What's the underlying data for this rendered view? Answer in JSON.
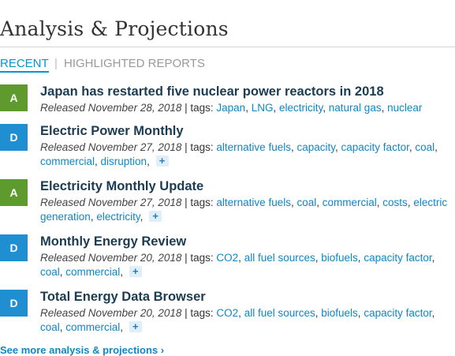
{
  "section": {
    "title": "Analysis & Projections"
  },
  "tabs": {
    "recent": "RECENT",
    "separator": "|",
    "highlighted": "HIGHLIGHTED REPORTS"
  },
  "colors": {
    "badge_A": "#5e9a2e",
    "badge_D": "#1f8fd1",
    "link": "#0f86c6",
    "tab_active": "#0096d6"
  },
  "items": [
    {
      "badge": "A",
      "title": "Japan has restarted five nuclear power reactors in 2018",
      "released": "Released November 28, 2018",
      "tags_label": " | tags: ",
      "tags": [
        "Japan",
        "LNG",
        "electricity",
        "natural gas",
        "nuclear"
      ],
      "more_label": ""
    },
    {
      "badge": "D",
      "title": "Electric Power Monthly",
      "released": "Released November 27, 2018",
      "tags_label": " | tags: ",
      "tags": [
        "alternative fuels",
        "capacity",
        "capacity factor",
        "coal",
        "commercial",
        "disruption"
      ],
      "more_label": "+"
    },
    {
      "badge": "A",
      "title": "Electricity Monthly Update",
      "released": "Released November 27, 2018",
      "tags_label": " | tags: ",
      "tags": [
        "alternative fuels",
        "coal",
        "commercial",
        "costs",
        "electric generation",
        "electricity"
      ],
      "more_label": "+"
    },
    {
      "badge": "D",
      "title": "Monthly Energy Review",
      "released": "Released November 20, 2018",
      "tags_label": " | tags: ",
      "tags": [
        "CO2",
        "all fuel sources",
        "biofuels",
        "capacity factor",
        "coal",
        "commercial"
      ],
      "more_label": "+"
    },
    {
      "badge": "D",
      "title": "Total Energy Data Browser",
      "released": "Released November 20, 2018",
      "tags_label": " | tags: ",
      "tags": [
        "CO2",
        "all fuel sources",
        "biofuels",
        "capacity factor",
        "coal",
        "commercial"
      ],
      "more_label": "+"
    }
  ],
  "see_more": "See more analysis & projections ›"
}
